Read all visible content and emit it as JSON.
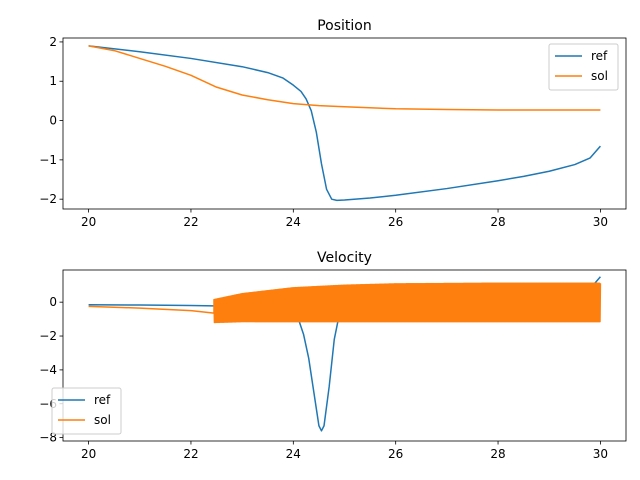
{
  "chart_data": [
    {
      "type": "line",
      "title": "Position",
      "xlim": [
        19.5,
        30.5
      ],
      "ylim": [
        -2.25,
        2.1
      ],
      "xticks": [
        20,
        22,
        24,
        26,
        28,
        30
      ],
      "yticks": [
        -2,
        -1,
        0,
        1,
        2
      ],
      "grid": false,
      "legend": "top-right",
      "series": [
        {
          "name": "ref",
          "color": "#1f77b4",
          "x": [
            20,
            21,
            22,
            23,
            23.5,
            23.8,
            24.0,
            24.15,
            24.25,
            24.35,
            24.45,
            24.55,
            24.65,
            24.75,
            24.85,
            25.0,
            25.5,
            26,
            27,
            28,
            28.5,
            29,
            29.5,
            29.8,
            30
          ],
          "y": [
            1.9,
            1.75,
            1.58,
            1.37,
            1.22,
            1.08,
            0.9,
            0.74,
            0.55,
            0.25,
            -0.3,
            -1.1,
            -1.75,
            -2.0,
            -2.03,
            -2.02,
            -1.97,
            -1.9,
            -1.73,
            -1.53,
            -1.42,
            -1.29,
            -1.12,
            -0.95,
            -0.65
          ]
        },
        {
          "name": "sol",
          "color": "#ff7f0e",
          "x": [
            20,
            20.5,
            21,
            21.5,
            22,
            22.5,
            23,
            23.5,
            24,
            24.5,
            25,
            26,
            27,
            28,
            29,
            30
          ],
          "y": [
            1.9,
            1.78,
            1.58,
            1.38,
            1.15,
            0.85,
            0.65,
            0.53,
            0.43,
            0.38,
            0.35,
            0.3,
            0.28,
            0.27,
            0.27,
            0.27
          ]
        }
      ]
    },
    {
      "type": "line",
      "title": "Velocity",
      "xlim": [
        19.5,
        30.5
      ],
      "ylim": [
        -8.2,
        1.9
      ],
      "xticks": [
        20,
        22,
        24,
        26,
        28,
        30
      ],
      "yticks": [
        -8,
        -6,
        -4,
        -2,
        0
      ],
      "grid": false,
      "legend": "bottom-left",
      "series": [
        {
          "name": "ref",
          "color": "#1f77b4",
          "x": [
            20,
            21,
            22,
            23,
            23.8,
            24.0,
            24.1,
            24.2,
            24.3,
            24.4,
            24.5,
            24.55,
            24.6,
            24.7,
            24.8,
            24.9,
            25.0,
            26,
            27,
            28,
            29,
            29.5,
            29.8,
            30
          ],
          "y": [
            -0.15,
            -0.17,
            -0.2,
            -0.25,
            -0.35,
            -0.6,
            -1.0,
            -1.9,
            -3.3,
            -5.3,
            -7.3,
            -7.6,
            -7.3,
            -5.0,
            -2.2,
            -0.7,
            -0.2,
            -0.05,
            0.05,
            0.1,
            0.2,
            0.4,
            0.8,
            1.5
          ]
        },
        {
          "name": "sol",
          "color": "#ff7f0e",
          "x": [
            20,
            21,
            22,
            22.45
          ],
          "y": [
            -0.25,
            -0.35,
            -0.5,
            -0.65
          ],
          "oscillation": {
            "x_start": 22.45,
            "x_end": 30,
            "upper": [
              [
                22.45,
                0.15
              ],
              [
                23,
                0.5
              ],
              [
                24,
                0.85
              ],
              [
                25,
                1.0
              ],
              [
                26,
                1.08
              ],
              [
                28,
                1.12
              ],
              [
                30,
                1.12
              ]
            ],
            "lower": [
              [
                22.45,
                -1.2
              ],
              [
                23,
                -1.15
              ],
              [
                24,
                -1.15
              ],
              [
                25,
                -1.15
              ],
              [
                26,
                -1.15
              ],
              [
                28,
                -1.15
              ],
              [
                30,
                -1.15
              ]
            ]
          }
        }
      ]
    }
  ]
}
